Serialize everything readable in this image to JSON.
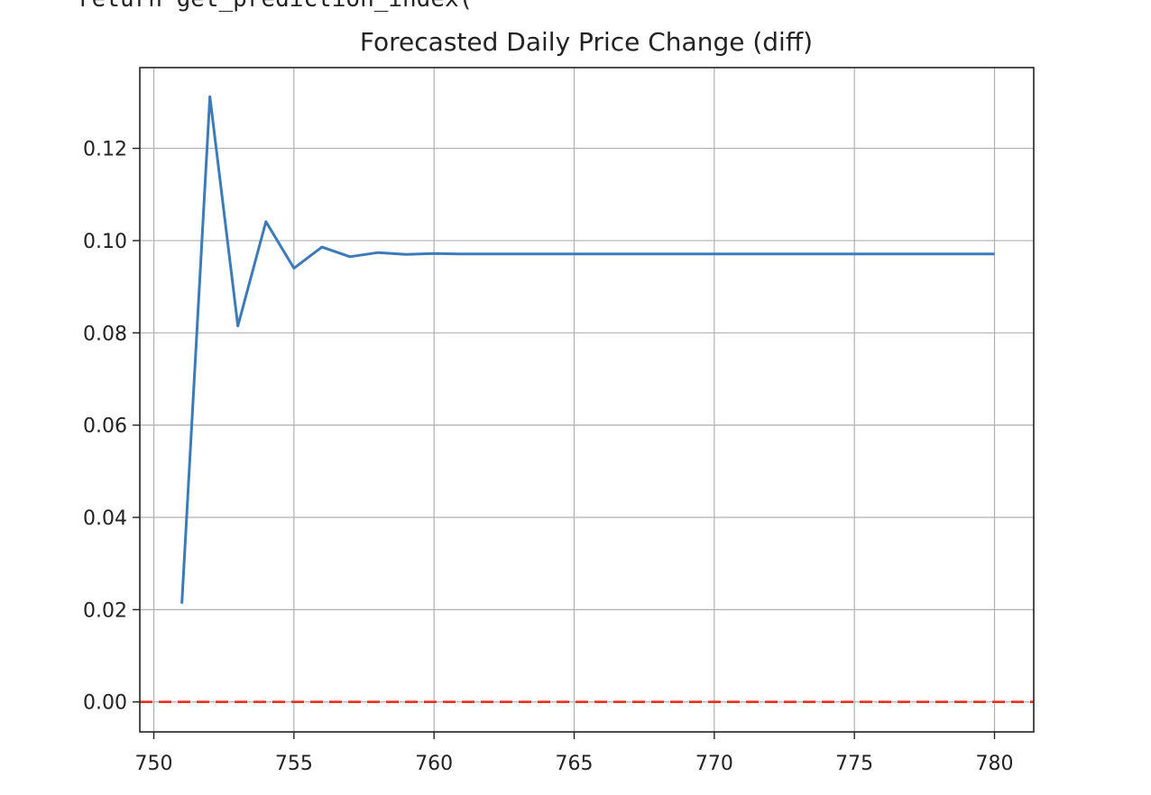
{
  "code_fragment": "return get_prediction_index(",
  "chart_data": {
    "type": "line",
    "title": "Forecasted Daily Price Change (diff)",
    "xlabel": "",
    "ylabel": "",
    "xlim": [
      749.5,
      781.4
    ],
    "ylim": [
      -0.0065,
      0.1375
    ],
    "xticks": [
      750,
      755,
      760,
      765,
      770,
      775,
      780
    ],
    "yticks": [
      0.0,
      0.02,
      0.04,
      0.06,
      0.08,
      0.1,
      0.12
    ],
    "xtick_labels": [
      "750",
      "755",
      "760",
      "765",
      "770",
      "775",
      "780"
    ],
    "ytick_labels": [
      "0.00",
      "0.02",
      "0.04",
      "0.06",
      "0.08",
      "0.10",
      "0.12"
    ],
    "grid": true,
    "series": [
      {
        "color": "#3d7ab8",
        "x": [
          751,
          752,
          753,
          754,
          755,
          756,
          757,
          758,
          759,
          760,
          761,
          762,
          763,
          764,
          765,
          766,
          767,
          768,
          769,
          770,
          771,
          772,
          773,
          774,
          775,
          776,
          777,
          778,
          779,
          780
        ],
        "y": [
          0.0213,
          0.1312,
          0.0815,
          0.1041,
          0.094,
          0.0986,
          0.0965,
          0.0974,
          0.097,
          0.0972,
          0.0971,
          0.0971,
          0.0971,
          0.0971,
          0.0971,
          0.0971,
          0.0971,
          0.0971,
          0.0971,
          0.0971,
          0.0971,
          0.0971,
          0.0971,
          0.0971,
          0.0971,
          0.0971,
          0.0971,
          0.0971,
          0.0971,
          0.0971
        ]
      }
    ],
    "reference_line": {
      "y": 0.0,
      "color": "#e8321e",
      "style": "dashed"
    }
  }
}
